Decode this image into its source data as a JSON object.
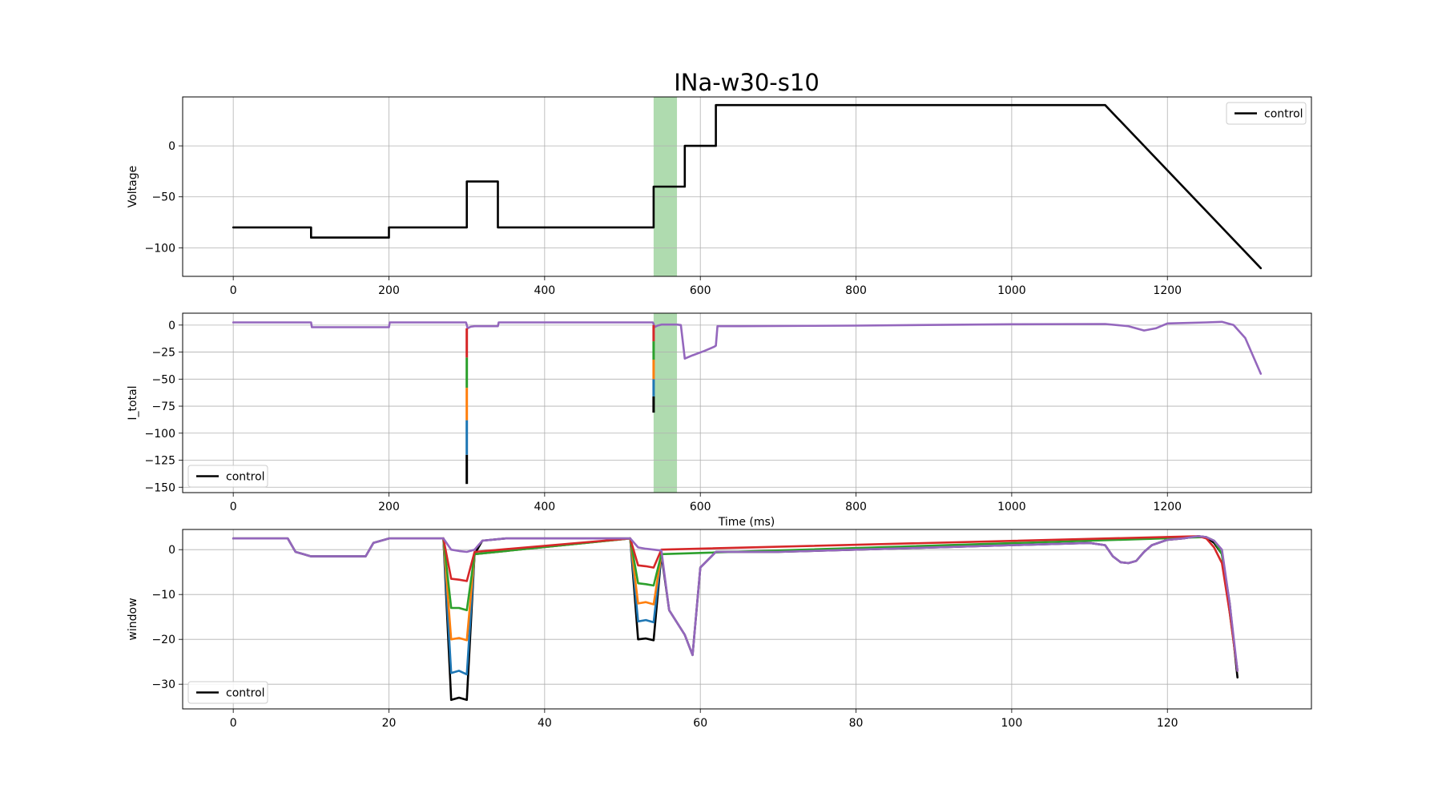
{
  "figure": {
    "title": "INa-w30-s10"
  },
  "colors": {
    "control": "#000000",
    "blue": "#1f77b4",
    "orange": "#ff7f0e",
    "green": "#2ca02c",
    "red": "#d62728",
    "purple": "#9467bd",
    "highlight": "#2ca02c",
    "grid": "#b0b0b0"
  },
  "chart_data": [
    {
      "type": "line",
      "title": "INa-w30-s10",
      "xlabel": "",
      "ylabel": "Voltage",
      "xlim": [
        -65,
        1385
      ],
      "ylim": [
        -128,
        48
      ],
      "xticks": [
        0,
        200,
        400,
        600,
        800,
        1000,
        1200
      ],
      "yticks": [
        0,
        -50,
        -100
      ],
      "grid": true,
      "legend": {
        "position": "top-right",
        "entries": [
          "control"
        ]
      },
      "highlight_band": [
        540,
        570
      ],
      "series": [
        {
          "name": "control",
          "color": "#000000",
          "x": [
            0,
            100,
            100,
            200,
            200,
            300,
            300,
            340,
            340,
            540,
            540,
            580,
            580,
            620,
            620,
            1120,
            1320
          ],
          "y": [
            -80,
            -80,
            -90,
            -90,
            -80,
            -80,
            -35,
            -35,
            -80,
            -80,
            -40,
            -40,
            0,
            0,
            40,
            40,
            -120
          ]
        }
      ]
    },
    {
      "type": "line",
      "xlabel": "Time (ms)",
      "ylabel": "I_total",
      "xlim": [
        -65,
        1385
      ],
      "ylim": [
        -155,
        11
      ],
      "xticks": [
        0,
        200,
        400,
        600,
        800,
        1000,
        1200
      ],
      "yticks": [
        0,
        -25,
        -50,
        -75,
        -100,
        -125,
        -150
      ],
      "grid": true,
      "legend": {
        "position": "bottom-left",
        "entries": [
          "control"
        ]
      },
      "highlight_band": [
        540,
        570
      ],
      "series": [
        {
          "color": "#9467bd",
          "x": [
            0,
            100,
            101,
            200,
            201,
            299,
            300,
            301,
            305,
            310,
            338,
            340,
            341,
            539,
            540,
            541,
            545,
            550,
            570,
            575,
            580,
            590,
            605,
            618,
            620,
            622,
            650,
            800,
            1000,
            1120,
            1150,
            1170,
            1185,
            1200,
            1250,
            1270,
            1285,
            1300,
            1320
          ],
          "y": [
            2.5,
            2.5,
            -2,
            -2,
            2.5,
            2.5,
            0,
            -3,
            -1.5,
            -1,
            -1,
            -1,
            2.5,
            2.5,
            1,
            -2,
            -0.5,
            0.5,
            0.5,
            0,
            -31,
            -28,
            -24,
            -20,
            -19,
            -1,
            -1,
            -0.5,
            0.8,
            1,
            -1,
            -5,
            -3,
            1.5,
            2.5,
            3,
            0,
            -12,
            -45
          ]
        }
      ],
      "spikes": [
        {
          "x": 300,
          "segments": [
            {
              "color": "#000000",
              "from": -120,
              "to": -147
            },
            {
              "color": "#1f77b4",
              "from": -88,
              "to": -120
            },
            {
              "color": "#ff7f0e",
              "from": -58,
              "to": -88
            },
            {
              "color": "#2ca02c",
              "from": -30,
              "to": -58
            },
            {
              "color": "#d62728",
              "from": -3,
              "to": -30
            }
          ]
        },
        {
          "x": 540,
          "segments": [
            {
              "color": "#000000",
              "from": -66,
              "to": -81
            },
            {
              "color": "#1f77b4",
              "from": -50,
              "to": -66
            },
            {
              "color": "#ff7f0e",
              "from": -32,
              "to": -50
            },
            {
              "color": "#2ca02c",
              "from": -15,
              "to": -32
            },
            {
              "color": "#d62728",
              "from": 0,
              "to": -15
            }
          ]
        }
      ]
    },
    {
      "type": "line",
      "xlabel": "",
      "ylabel": "window",
      "xlim": [
        -6.5,
        138.5
      ],
      "ylim": [
        -35.5,
        4.5
      ],
      "xticks": [
        0,
        20,
        40,
        60,
        80,
        100,
        120
      ],
      "yticks": [
        0,
        -10,
        -20,
        -30
      ],
      "grid": true,
      "legend": {
        "position": "bottom-left",
        "entries": [
          "control"
        ]
      },
      "series": [
        {
          "name": "control",
          "color": "#000000",
          "x": [
            0,
            7,
            8,
            10,
            17,
            18,
            20,
            27,
            28,
            29,
            30,
            31,
            32,
            35,
            51,
            52,
            53,
            54,
            55,
            56,
            58,
            59,
            60,
            62,
            70,
            90,
            110,
            112,
            113,
            114,
            115,
            116,
            117,
            118,
            120,
            122,
            124,
            125,
            126,
            127,
            128,
            129
          ],
          "y": [
            2.5,
            2.5,
            -0.5,
            -1.5,
            -1.5,
            1.5,
            2.5,
            2.5,
            -33.5,
            -33,
            -33.5,
            -1,
            2,
            2.5,
            2.5,
            -20,
            -19.8,
            -20.2,
            -1,
            -13.5,
            -19,
            -23.5,
            -4,
            -0.5,
            -0.5,
            0.5,
            1.5,
            1,
            -1.5,
            -2.8,
            -3,
            -2.5,
            -0.5,
            1,
            2.2,
            2.5,
            3,
            2.8,
            1.5,
            -1,
            -12,
            -28.5
          ]
        },
        {
          "color": "#1f77b4",
          "x": [
            27,
            28,
            29,
            30,
            31,
            51,
            52,
            53,
            54,
            55
          ],
          "y": [
            2.5,
            -27.5,
            -27,
            -27.8,
            -1,
            2.5,
            -16,
            -15.7,
            -16.2,
            -1
          ]
        },
        {
          "color": "#ff7f0e",
          "x": [
            27,
            28,
            29,
            30,
            31,
            51,
            52,
            53,
            54,
            55
          ],
          "y": [
            2.5,
            -20,
            -19.7,
            -20.2,
            -1,
            2.5,
            -12,
            -11.7,
            -12.2,
            -1
          ]
        },
        {
          "color": "#2ca02c",
          "x": [
            27,
            28,
            29,
            30,
            31,
            51,
            52,
            53,
            54,
            55,
            125,
            126,
            127,
            128,
            129
          ],
          "y": [
            2.5,
            -13,
            -13,
            -13.5,
            -1,
            2.5,
            -7.5,
            -7.7,
            -8,
            -1,
            2.8,
            2,
            -1,
            -14,
            -27
          ]
        },
        {
          "color": "#d62728",
          "x": [
            27,
            28,
            29,
            30,
            31,
            51,
            52,
            53,
            54,
            55,
            124,
            125,
            126,
            127,
            128,
            129
          ],
          "y": [
            2.5,
            -6.5,
            -6.7,
            -7,
            -0.5,
            2.5,
            -3.5,
            -3.7,
            -4,
            0,
            3,
            2.5,
            0.5,
            -3,
            -14,
            -27
          ]
        },
        {
          "color": "#9467bd",
          "x": [
            0,
            7,
            8,
            10,
            17,
            18,
            20,
            27,
            28,
            29,
            30,
            31,
            32,
            35,
            51,
            52,
            53,
            54,
            55,
            56,
            58,
            59,
            60,
            62,
            70,
            90,
            110,
            112,
            113,
            114,
            115,
            116,
            117,
            118,
            120,
            122,
            124,
            125,
            126,
            127,
            128,
            129
          ],
          "y": [
            2.5,
            2.5,
            -0.5,
            -1.5,
            -1.5,
            1.5,
            2.5,
            2.5,
            0,
            -0.3,
            -0.5,
            0,
            2,
            2.5,
            2.5,
            0.5,
            0.2,
            0,
            -0.2,
            -13.5,
            -19,
            -23.5,
            -4,
            -0.5,
            -0.5,
            0.5,
            1.5,
            1,
            -1.5,
            -2.8,
            -3,
            -2.5,
            -0.5,
            1,
            2.2,
            2.5,
            3,
            2.8,
            2,
            0,
            -12,
            -27
          ]
        }
      ]
    }
  ]
}
